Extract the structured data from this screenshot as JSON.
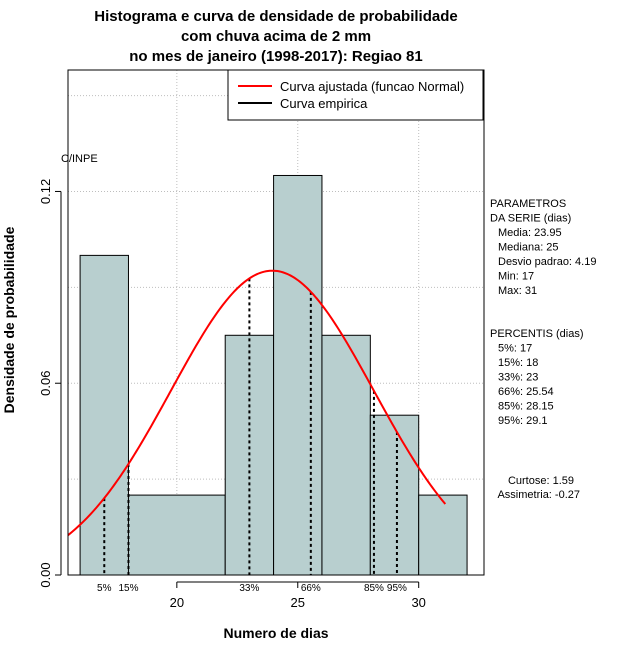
{
  "chart_data": {
    "type": "bar",
    "title_lines": [
      "Histograma e curva de densidade de probabilidade",
      "com chuva acima de 2 mm",
      "no mes de janeiro (1998-2017): Regiao 81"
    ],
    "xlabel": "Numero de dias",
    "ylabel": "Densidade de probabilidade",
    "xlim": [
      15.5,
      32.7
    ],
    "ylim": [
      0,
      0.158
    ],
    "x_ticks": [
      20,
      25,
      30
    ],
    "y_ticks": [
      0.0,
      0.06,
      0.12
    ],
    "y_tick_labels": [
      "0.00",
      "0.06",
      "0.12"
    ],
    "grid": true,
    "bins": [
      {
        "x0": 16,
        "x1": 18,
        "value": 0.1
      },
      {
        "x0": 18,
        "x1": 22,
        "value": 0.025
      },
      {
        "x0": 22,
        "x1": 24,
        "value": 0.075
      },
      {
        "x0": 24,
        "x1": 26,
        "value": 0.125
      },
      {
        "x0": 26,
        "x1": 28,
        "value": 0.075
      },
      {
        "x0": 28,
        "x1": 30,
        "value": 0.05
      },
      {
        "x0": 30,
        "x1": 32,
        "value": 0.025
      }
    ],
    "normal_curve": {
      "mean": 23.95,
      "sd": 4.19,
      "x_range": [
        15.5,
        31.1
      ]
    },
    "percentile_lines": [
      {
        "label": "5%",
        "x": 17
      },
      {
        "label": "15%",
        "x": 18
      },
      {
        "label": "33%",
        "x": 23
      },
      {
        "label": "66%",
        "x": 25.54
      },
      {
        "label": "85%",
        "x": 28.15
      },
      {
        "label": "95%",
        "x": 29.1
      }
    ],
    "legend": {
      "placement": "top-right",
      "entries": [
        {
          "label": "Curva ajustada (funcao Normal)",
          "color": "#ff0000"
        },
        {
          "label": "Curva empirica",
          "color": "#000000"
        }
      ]
    },
    "annotation_left": "C/INPE",
    "stats_block": [
      "PARAMETROS",
      "DA SERIE (dias)",
      "  Media: 23.95",
      "  Mediana: 25",
      "  Desvio padrao: 4.19",
      "  Min: 17",
      "  Max: 31"
    ],
    "percentis_block": [
      "PERCENTIS (dias)",
      "  5%: 17",
      "  15%: 18",
      "  33%: 23",
      "  66%: 25.54",
      "  85%: 28.15",
      "  95%: 29.1"
    ],
    "shape_block": [
      "Curtose: 1.59",
      "Assimetria: -0.27"
    ],
    "colors": {
      "bar_fill": "#b8cfcf",
      "bar_stroke": "#000000",
      "curve": "#ff0000",
      "grid": "#bebebe"
    }
  }
}
